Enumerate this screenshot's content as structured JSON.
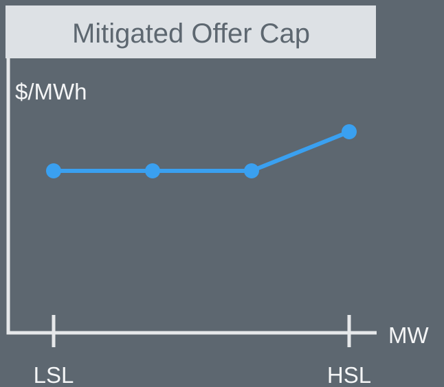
{
  "title": "Mitigated Offer Cap",
  "y_axis_label": "$/MWh",
  "x_axis_label": "MW",
  "x_labels": [
    "LSL",
    "HSL"
  ]
}
